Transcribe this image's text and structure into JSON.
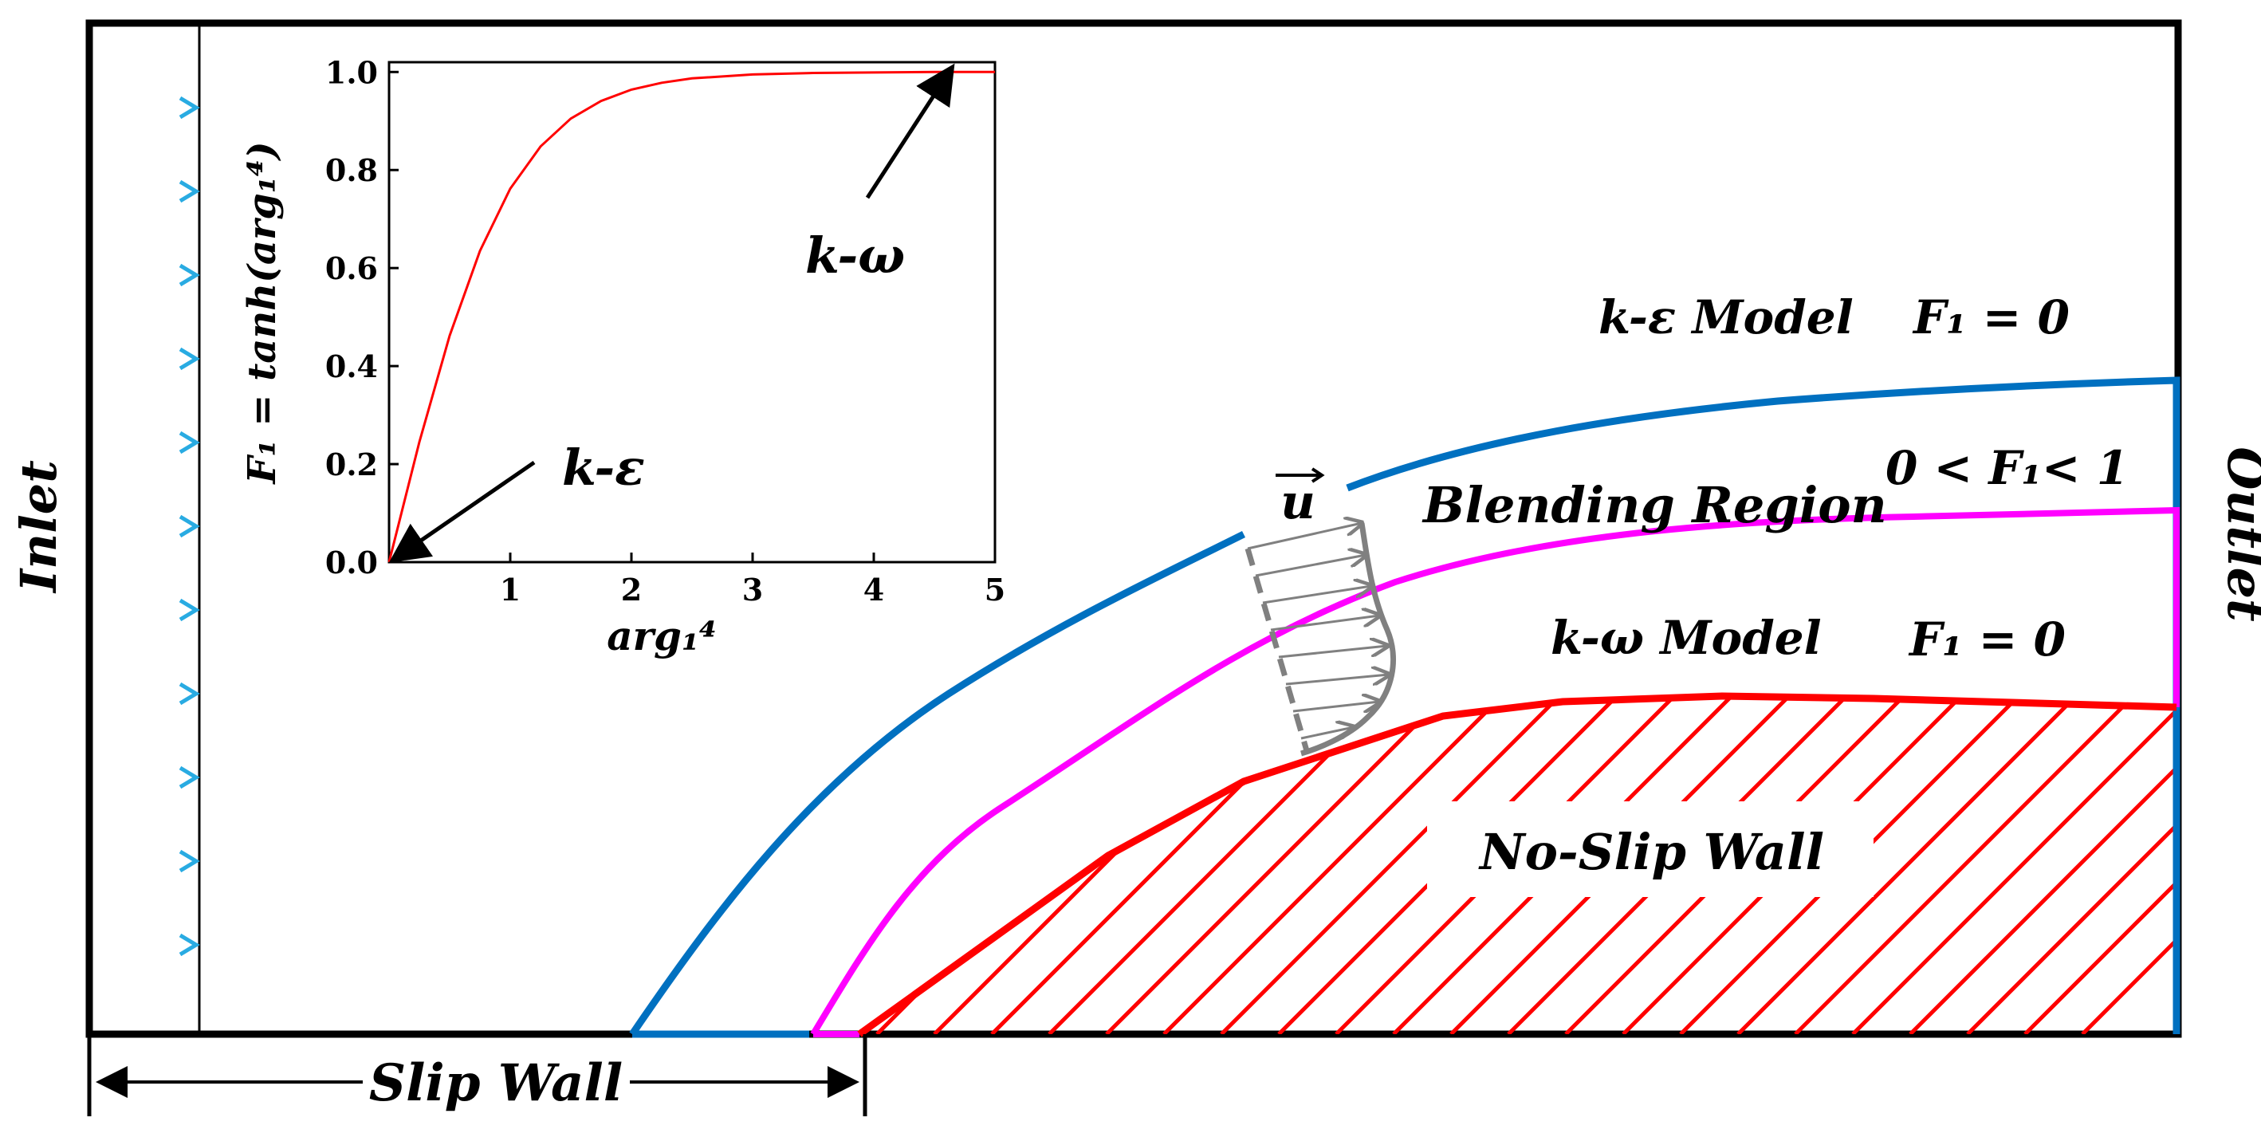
{
  "labels": {
    "inlet": "Inlet",
    "outlet": "Outlet",
    "slip_wall": "Slip Wall",
    "no_slip_wall": "No-Slip Wall",
    "blending_region": "Blending Region",
    "k_eps_model": "k-ε Model",
    "k_omega_model": "k-ω Model",
    "velocity_vector": "u",
    "f1_zero_top": "F₁ = 0",
    "f1_range": "0 < F₁< 1",
    "f1_zero_bottom": "F₁ = 0"
  },
  "colors": {
    "frame": "#000000",
    "inlet_arrows": "#29abe2",
    "k_eps_boundary": "#0070c0",
    "blend_boundary": "#ff00ff",
    "wall_and_curve": "#ff0000",
    "velocity_profile": "#808080"
  },
  "chart_data": {
    "type": "line",
    "xlabel": "arg₁⁴",
    "ylabel": "F₁ = tanh(arg₁⁴)",
    "xlim": [
      0,
      5
    ],
    "ylim": [
      0,
      1.02
    ],
    "x_ticks": [
      "1",
      "2",
      "3",
      "4",
      "5"
    ],
    "y_ticks": [
      "0.0",
      "0.2",
      "0.4",
      "0.6",
      "0.8",
      "1.0"
    ],
    "series": [
      {
        "x": [
          0,
          0.25,
          0.5,
          0.75,
          1.0,
          1.25,
          1.5,
          1.75,
          2.0,
          2.25,
          2.5,
          3.0,
          3.5,
          4.0,
          4.5,
          5.0
        ],
        "y": [
          0,
          0.245,
          0.462,
          0.635,
          0.762,
          0.848,
          0.905,
          0.941,
          0.964,
          0.978,
          0.987,
          0.995,
          0.998,
          0.999,
          1.0,
          1.0
        ]
      }
    ],
    "annotations": [
      {
        "text": "k-ε",
        "points_to": [
          0,
          0
        ]
      },
      {
        "text": "k-ω",
        "points_to": [
          4.7,
          1.0
        ]
      }
    ],
    "grid": false
  }
}
